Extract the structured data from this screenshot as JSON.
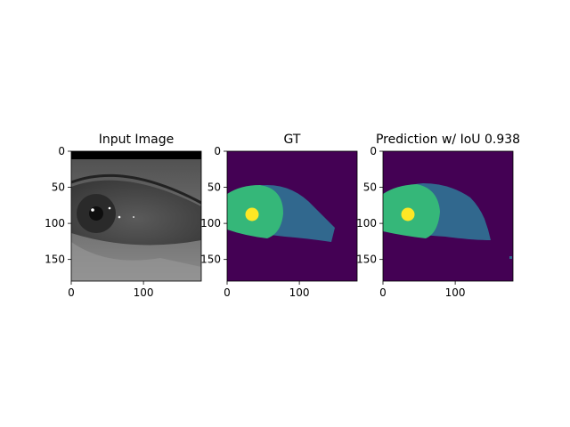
{
  "figure": {
    "panels": [
      {
        "id": "input",
        "title": "Input Image"
      },
      {
        "id": "gt",
        "title": "GT"
      },
      {
        "id": "pred",
        "title": "Prediction w/ IoU 0.938"
      }
    ]
  },
  "colors": {
    "background_class": "#440154",
    "iris_class": "#35b779",
    "sclera_class": "#31688e",
    "pupil_class": "#fde725",
    "grayscale_image": "#4a4a4a"
  },
  "chart_data": [
    {
      "type": "heatmap",
      "title": "Input Image",
      "xlim": [
        0,
        180
      ],
      "ylim": [
        180,
        0
      ],
      "xticks": [
        0,
        100
      ],
      "yticks": [
        0,
        50,
        100,
        150
      ],
      "xlabel": "",
      "ylabel": ""
    },
    {
      "type": "heatmap",
      "title": "GT",
      "xlim": [
        0,
        180
      ],
      "ylim": [
        180,
        0
      ],
      "xticks": [
        0,
        100
      ],
      "yticks": [
        0,
        50,
        100,
        150
      ],
      "xlabel": "",
      "ylabel": ""
    },
    {
      "type": "heatmap",
      "title": "Prediction w/ IoU 0.938",
      "xlim": [
        0,
        180
      ],
      "ylim": [
        180,
        0
      ],
      "xticks": [
        0,
        100
      ],
      "yticks": [
        0,
        50,
        100,
        150
      ],
      "xlabel": "",
      "ylabel": ""
    }
  ]
}
